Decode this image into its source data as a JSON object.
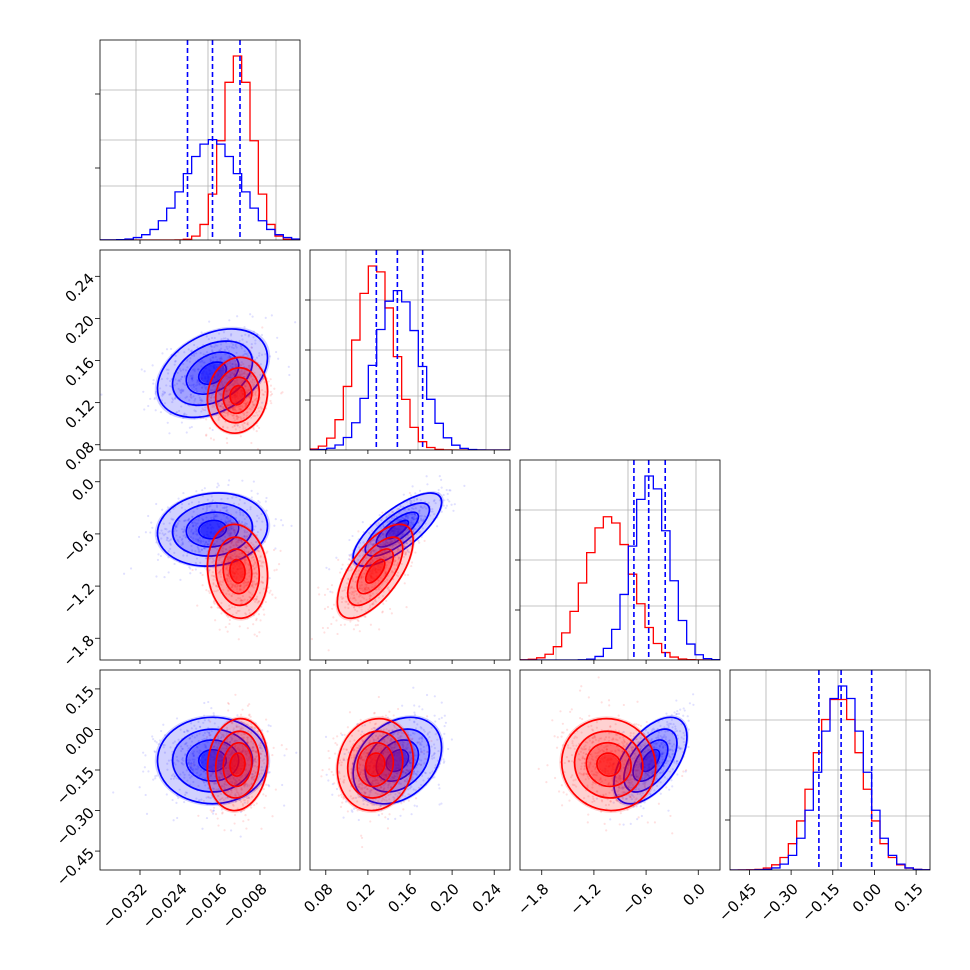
{
  "chart_data": {
    "type": "corner",
    "colors": {
      "model_a": "#0000ff",
      "model_b": "#ff0000",
      "grid": "#b0b0b0"
    },
    "grid": true,
    "parameters": [
      {
        "xlim": [
          -0.04,
          0.0
        ],
        "ylim": [
          0.08,
          0.25
        ],
        "ticks": [
          -0.032,
          -0.024,
          -0.016,
          -0.008
        ],
        "tick_labels": [
          "−0.032",
          "−0.024",
          "−0.016",
          "−0.008"
        ]
      },
      {
        "xlim": [
          0.065,
          0.255
        ],
        "ylim": [
          0.075,
          0.265
        ],
        "ticks": [
          0.08,
          0.12,
          0.16,
          0.2,
          0.24
        ],
        "tick_labels": [
          "0.08",
          "0.12",
          "0.16",
          "0.20",
          "0.24"
        ]
      },
      {
        "xlim": [
          -2.05,
          0.25
        ],
        "ylim": [
          -2.05,
          0.25
        ],
        "ticks": [
          -1.8,
          -1.2,
          -0.6,
          0.0
        ],
        "tick_labels": [
          "−1.8",
          "−1.2",
          "−0.6",
          "0.0"
        ]
      },
      {
        "xlim": [
          -0.52,
          0.2
        ],
        "ylim": [
          -0.52,
          0.22
        ],
        "ticks": [
          -0.45,
          -0.3,
          -0.15,
          0.0,
          0.15
        ],
        "tick_labels": [
          "−0.45",
          "−0.30",
          "−0.15",
          "0.00",
          "0.15"
        ]
      }
    ],
    "series": [
      {
        "color": "#0000ff",
        "mean": [
          -0.0175,
          0.148,
          -0.55,
          -0.115
        ],
        "sd": [
          0.0055,
          0.021,
          0.21,
          0.08
        ],
        "quantiles": [
          [
            -0.0225,
            -0.0175,
            -0.012
          ],
          [
            0.128,
            0.148,
            0.172
          ],
          [
            -0.74,
            -0.57,
            -0.38
          ],
          [
            -0.2,
            -0.12,
            -0.01
          ]
        ],
        "corr": {
          "0-1": 0.35,
          "0-2": 0.1,
          "1-2": 0.75,
          "0-3": 0.0,
          "1-3": 0.3,
          "2-3": 0.55
        }
      },
      {
        "color": "#ff0000",
        "mean": [
          -0.0125,
          0.127,
          -1.03,
          -0.13
        ],
        "sd": [
          0.003,
          0.018,
          0.27,
          0.085
        ],
        "corr": {
          "0-1": 0.1,
          "0-2": -0.1,
          "1-2": 0.65,
          "0-3": 0.1,
          "1-3": 0.1,
          "2-3": -0.05
        }
      }
    ]
  }
}
